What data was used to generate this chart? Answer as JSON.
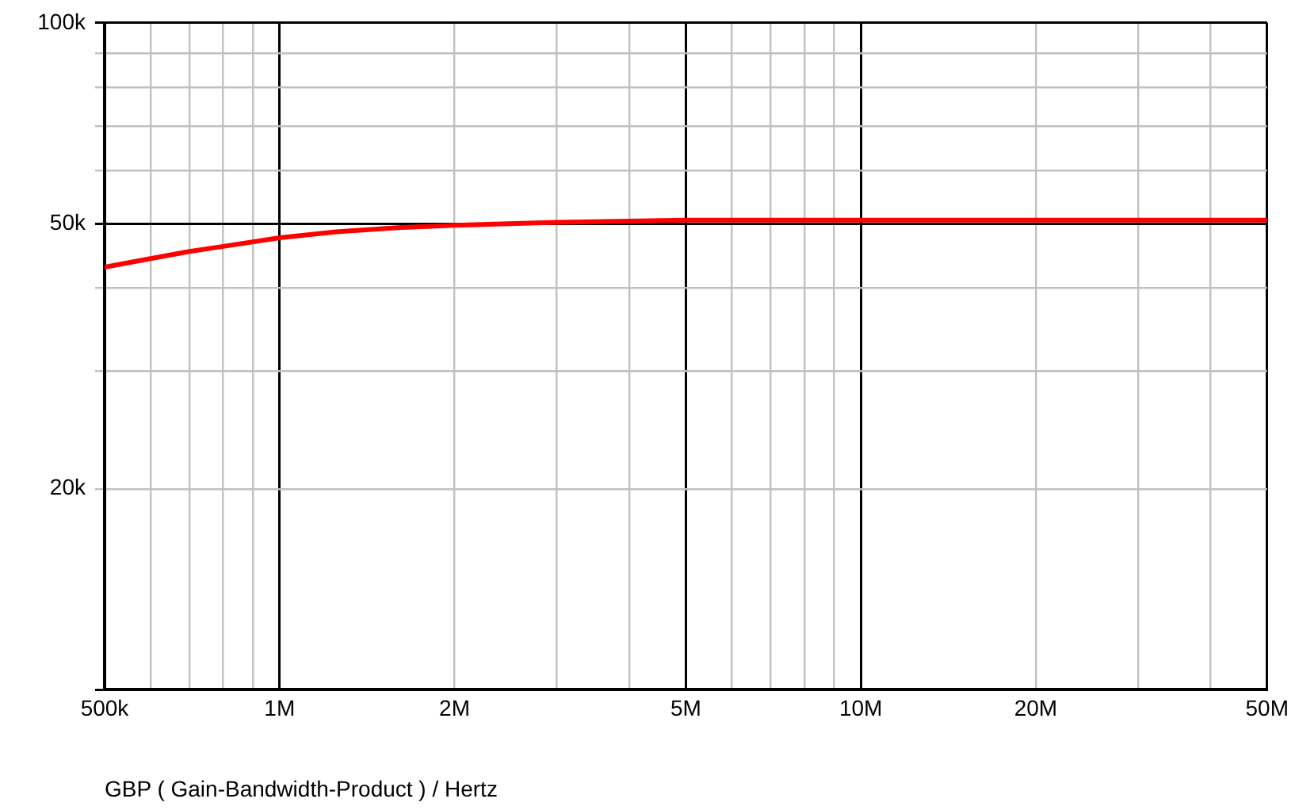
{
  "chart_data": {
    "type": "line",
    "xlabel": "GBP ( Gain-Bandwidth-Product ) / Hertz",
    "log": "xy",
    "grid": true,
    "legend": false,
    "marker": "none",
    "line_style": "solid",
    "x": [
      500000,
      600000,
      700000,
      800000,
      1000000,
      1250000,
      1600000,
      2000000,
      3000000,
      5000000,
      10000000,
      20000000,
      50000000
    ],
    "series": [
      {
        "color": "#ff0000",
        "values": [
          43000,
          44300,
          45400,
          46200,
          47600,
          48600,
          49300,
          49700,
          50200,
          50600,
          50600,
          50600,
          50600
        ]
      }
    ],
    "xlim": [
      500000,
      50000000
    ],
    "xticks": [
      {
        "value": 500000,
        "label": "500k"
      },
      {
        "value": 600000,
        "label": null
      },
      {
        "value": 700000,
        "label": null
      },
      {
        "value": 800000,
        "label": null
      },
      {
        "value": 900000,
        "label": null
      },
      {
        "value": 1000000,
        "label": "1M"
      },
      {
        "value": 2000000,
        "label": "2M"
      },
      {
        "value": 3000000,
        "label": null
      },
      {
        "value": 4000000,
        "label": null
      },
      {
        "value": 5000000,
        "label": "5M"
      },
      {
        "value": 6000000,
        "label": null
      },
      {
        "value": 7000000,
        "label": null
      },
      {
        "value": 8000000,
        "label": null
      },
      {
        "value": 9000000,
        "label": null
      },
      {
        "value": 10000000,
        "label": "10M"
      },
      {
        "value": 20000000,
        "label": "20M"
      },
      {
        "value": 30000000,
        "label": null
      },
      {
        "value": 40000000,
        "label": null
      },
      {
        "value": 50000000,
        "label": "50M"
      }
    ],
    "ylim": [
      10000,
      100000
    ],
    "yticks": [
      {
        "value": 10000,
        "label": null
      },
      {
        "value": 20000,
        "label": "20k"
      },
      {
        "value": 30000,
        "label": null
      },
      {
        "value": 40000,
        "label": null
      },
      {
        "value": 50000,
        "label": "50k"
      },
      {
        "value": 60000,
        "label": null
      },
      {
        "value": 70000,
        "label": null
      },
      {
        "value": 80000,
        "label": null
      },
      {
        "value": 90000,
        "label": null
      },
      {
        "value": 100000,
        "label": "100k"
      }
    ]
  }
}
